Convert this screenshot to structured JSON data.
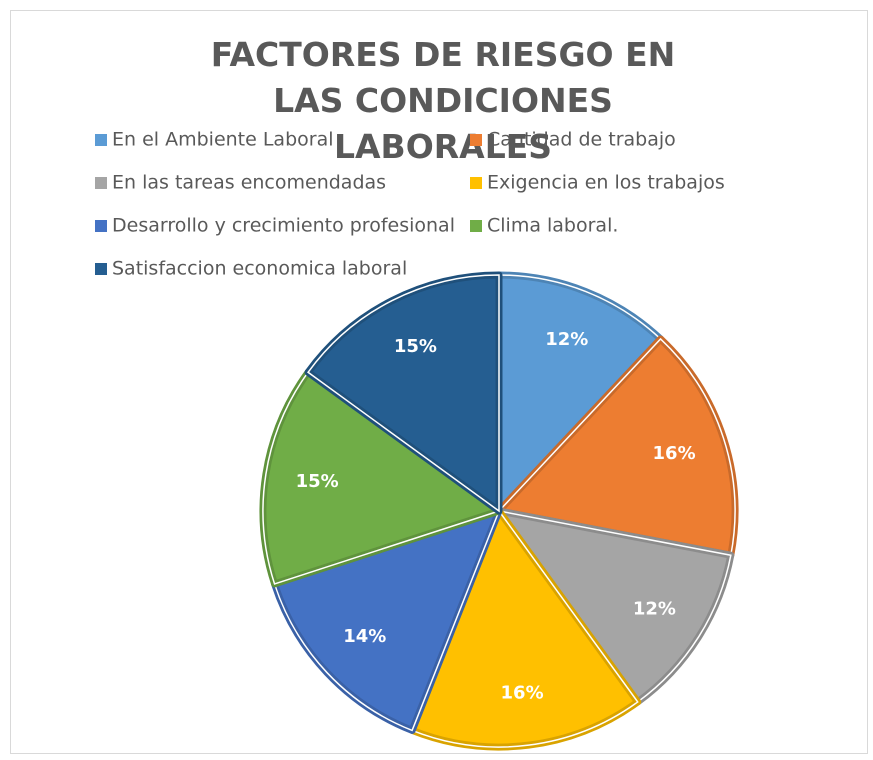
{
  "chart_data": {
    "type": "pie",
    "title": "FACTORES DE RIESGO EN LAS CONDICIONES LABORALES",
    "categories": [
      "En el Ambiente Laboral",
      "Cantidad de trabajo",
      "En las tareas encomendadas",
      "Exigencia en los trabajos",
      "Desarrollo y crecimiento profesional",
      "Clima laboral.",
      "Satisfaccion economica laboral"
    ],
    "values": [
      12,
      16,
      12,
      16,
      14,
      15,
      15
    ],
    "value_labels": [
      "12%",
      "16%",
      "12%",
      "16%",
      "14%",
      "15%",
      "15%"
    ],
    "colors": [
      "#5b9bd5",
      "#ed7d31",
      "#a5a5a5",
      "#ffc000",
      "#4472c4",
      "#70ad47",
      "#255e91"
    ],
    "legend": "top"
  }
}
